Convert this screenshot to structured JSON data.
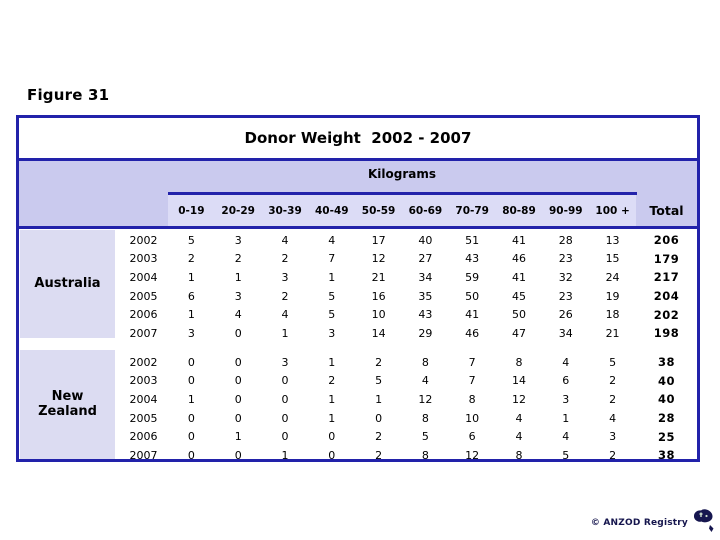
{
  "figure_label": "Figure 31",
  "footer": {
    "credit": "© ANZOD Registry"
  },
  "icons": {
    "logo": "anzod-australia-nz-map-logo"
  },
  "colors": {
    "navy_border": "#2222aa",
    "header_band": "#cacaee",
    "subheader_cells": "#dcdcf6",
    "row_label_block": "#dcdcf2",
    "credit_text": "#15154d"
  },
  "chart_data": {
    "type": "table",
    "title": "Donor Weight  2002 - 2007",
    "units_label": "Kilograms",
    "columns": [
      "0-19",
      "20-29",
      "30-39",
      "40-49",
      "50-59",
      "60-69",
      "70-79",
      "80-89",
      "90-99",
      "100 +"
    ],
    "total_label": "Total",
    "groups": [
      {
        "label": "Australia",
        "label_display": "Australia",
        "rows": [
          {
            "year": "2002",
            "values": [
              5,
              3,
              4,
              4,
              17,
              40,
              51,
              41,
              28,
              13
            ],
            "total": 206
          },
          {
            "year": "2003",
            "values": [
              2,
              2,
              2,
              7,
              12,
              27,
              43,
              46,
              23,
              15
            ],
            "total": 179
          },
          {
            "year": "2004",
            "values": [
              1,
              1,
              3,
              1,
              21,
              34,
              59,
              41,
              32,
              24
            ],
            "total": 217
          },
          {
            "year": "2005",
            "values": [
              6,
              3,
              2,
              5,
              16,
              35,
              50,
              45,
              23,
              19
            ],
            "total": 204
          },
          {
            "year": "2006",
            "values": [
              1,
              4,
              4,
              5,
              10,
              43,
              41,
              50,
              26,
              18
            ],
            "total": 202
          },
          {
            "year": "2007",
            "values": [
              3,
              0,
              1,
              3,
              14,
              29,
              46,
              47,
              34,
              21
            ],
            "total": 198
          }
        ]
      },
      {
        "label": "New Zealand",
        "label_display": "New\nZealand",
        "rows": [
          {
            "year": "2002",
            "values": [
              0,
              0,
              3,
              1,
              2,
              8,
              7,
              8,
              4,
              5
            ],
            "total": 38
          },
          {
            "year": "2003",
            "values": [
              0,
              0,
              0,
              2,
              5,
              4,
              7,
              14,
              6,
              2
            ],
            "total": 40
          },
          {
            "year": "2004",
            "values": [
              1,
              0,
              0,
              1,
              1,
              12,
              8,
              12,
              3,
              2
            ],
            "total": 40
          },
          {
            "year": "2005",
            "values": [
              0,
              0,
              0,
              1,
              0,
              8,
              10,
              4,
              1,
              4
            ],
            "total": 28
          },
          {
            "year": "2006",
            "values": [
              0,
              1,
              0,
              0,
              2,
              5,
              6,
              4,
              4,
              3
            ],
            "total": 25
          },
          {
            "year": "2007",
            "values": [
              0,
              0,
              1,
              0,
              2,
              8,
              12,
              8,
              5,
              2
            ],
            "total": 38
          }
        ]
      }
    ]
  }
}
